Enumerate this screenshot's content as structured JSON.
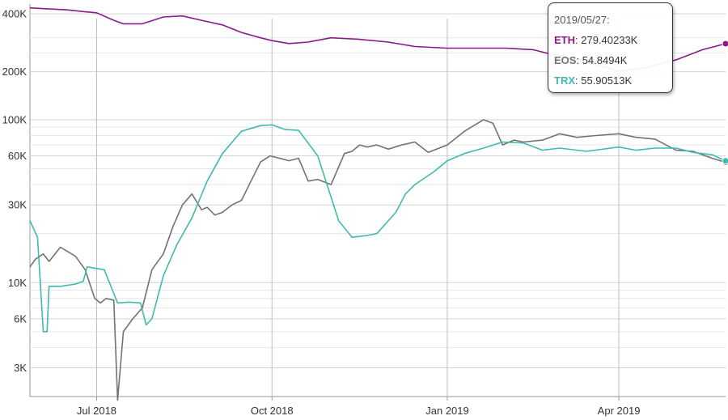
{
  "chart_data": {
    "type": "line",
    "title": "",
    "xlabel": "",
    "ylabel": "",
    "x_range": [
      "2018-05-27",
      "2019-05-27"
    ],
    "x_ticks": [
      {
        "date": "2018-07-01",
        "label": "Jul 2018"
      },
      {
        "date": "2018-10-01",
        "label": "Oct 2018"
      },
      {
        "date": "2019-01-01",
        "label": "Jan 2019"
      },
      {
        "date": "2019-04-01",
        "label": "Apr 2019"
      }
    ],
    "scale": "log",
    "grid": true,
    "legend": "none",
    "upper_axis": {
      "ylim": [
        150000,
        450000
      ],
      "ticks": [
        {
          "value": 400000,
          "label": "400K"
        },
        {
          "value": 200000,
          "label": "200K"
        }
      ],
      "minor_gridlines": [
        300000,
        250000
      ]
    },
    "lower_axis": {
      "ylim": [
        2000,
        120000
      ],
      "ticks": [
        {
          "value": 100000,
          "label": "100K"
        },
        {
          "value": 60000,
          "label": "60K"
        },
        {
          "value": 30000,
          "label": "30K"
        },
        {
          "value": 10000,
          "label": "10K"
        },
        {
          "value": 6000,
          "label": "6K"
        },
        {
          "value": 3000,
          "label": "3K"
        }
      ],
      "minor_gridlines": [
        90000,
        80000,
        70000,
        50000,
        40000,
        20000,
        9000,
        8000,
        7000,
        5000,
        4000
      ]
    },
    "series": [
      {
        "name": "ETH",
        "axis": "upper",
        "color": "#8b1a89",
        "x": [
          "2018-05-27",
          "2018-06-05",
          "2018-06-15",
          "2018-06-25",
          "2018-07-01",
          "2018-07-10",
          "2018-07-15",
          "2018-07-25",
          "2018-08-05",
          "2018-08-15",
          "2018-08-25",
          "2018-09-05",
          "2018-09-15",
          "2018-09-25",
          "2018-10-01",
          "2018-10-10",
          "2018-10-20",
          "2018-11-01",
          "2018-11-15",
          "2018-12-01",
          "2018-12-15",
          "2019-01-01",
          "2019-01-15",
          "2019-02-01",
          "2019-02-15",
          "2019-03-01",
          "2019-03-15",
          "2019-04-01",
          "2019-04-15",
          "2019-05-01",
          "2019-05-15",
          "2019-05-27"
        ],
        "values": [
          430000,
          425000,
          420000,
          410000,
          405000,
          370000,
          355000,
          355000,
          385000,
          390000,
          370000,
          350000,
          320000,
          300000,
          290000,
          280000,
          285000,
          300000,
          295000,
          285000,
          270000,
          265000,
          265000,
          265000,
          260000,
          240000,
          225000,
          200000,
          210000,
          230000,
          260000,
          279402
        ]
      },
      {
        "name": "EOS",
        "axis": "lower",
        "color": "#727272",
        "x": [
          "2018-05-27",
          "2018-05-30",
          "2018-06-03",
          "2018-06-06",
          "2018-06-12",
          "2018-06-20",
          "2018-06-25",
          "2018-06-30",
          "2018-07-03",
          "2018-07-06",
          "2018-07-10",
          "2018-07-12",
          "2018-07-15",
          "2018-07-20",
          "2018-07-25",
          "2018-07-30",
          "2018-08-05",
          "2018-08-10",
          "2018-08-15",
          "2018-08-20",
          "2018-08-25",
          "2018-08-28",
          "2018-09-01",
          "2018-09-05",
          "2018-09-10",
          "2018-09-15",
          "2018-09-20",
          "2018-09-25",
          "2018-09-30",
          "2018-10-05",
          "2018-10-10",
          "2018-10-15",
          "2018-10-20",
          "2018-10-25",
          "2018-11-01",
          "2018-11-08",
          "2018-11-12",
          "2018-11-16",
          "2018-11-20",
          "2018-11-25",
          "2018-12-01",
          "2018-12-08",
          "2018-12-15",
          "2018-12-22",
          "2019-01-01",
          "2019-01-10",
          "2019-01-20",
          "2019-01-25",
          "2019-01-30",
          "2019-02-05",
          "2019-02-10",
          "2019-02-20",
          "2019-03-01",
          "2019-03-10",
          "2019-03-20",
          "2019-04-01",
          "2019-04-10",
          "2019-04-20",
          "2019-05-01",
          "2019-05-10",
          "2019-05-20",
          "2019-05-27"
        ],
        "values": [
          12500,
          14000,
          15000,
          13500,
          16500,
          14500,
          12000,
          8000,
          7500,
          8000,
          7800,
          1900,
          5000,
          6000,
          7000,
          12000,
          15000,
          22000,
          30000,
          35000,
          28000,
          29000,
          26000,
          27000,
          30000,
          32000,
          42000,
          55000,
          60000,
          58000,
          56000,
          58000,
          42000,
          43000,
          40000,
          62000,
          64000,
          70000,
          68000,
          70000,
          66000,
          70000,
          73000,
          63000,
          70000,
          85000,
          100000,
          95000,
          70000,
          75000,
          73000,
          75000,
          82000,
          78000,
          80000,
          82000,
          78000,
          76000,
          65000,
          64000,
          58000,
          54849
        ]
      },
      {
        "name": "TRX",
        "axis": "lower",
        "color": "#3fbab0",
        "x": [
          "2018-05-27",
          "2018-05-31",
          "2018-06-03",
          "2018-06-05",
          "2018-06-06",
          "2018-06-12",
          "2018-06-20",
          "2018-06-24",
          "2018-06-26",
          "2018-07-05",
          "2018-07-12",
          "2018-07-18",
          "2018-07-24",
          "2018-07-27",
          "2018-07-30",
          "2018-08-05",
          "2018-08-12",
          "2018-08-20",
          "2018-08-28",
          "2018-09-05",
          "2018-09-15",
          "2018-09-25",
          "2018-10-01",
          "2018-10-08",
          "2018-10-15",
          "2018-10-25",
          "2018-11-05",
          "2018-11-12",
          "2018-11-20",
          "2018-11-25",
          "2018-12-05",
          "2018-12-10",
          "2018-12-15",
          "2018-12-25",
          "2019-01-01",
          "2019-01-10",
          "2019-01-20",
          "2019-01-30",
          "2019-02-10",
          "2019-02-20",
          "2019-03-01",
          "2019-03-15",
          "2019-04-01",
          "2019-04-10",
          "2019-04-20",
          "2019-05-01",
          "2019-05-10",
          "2019-05-20",
          "2019-05-27"
        ],
        "values": [
          24000,
          19000,
          5000,
          5000,
          9500,
          9500,
          9800,
          10200,
          12500,
          12000,
          7500,
          7600,
          7500,
          5500,
          6000,
          11000,
          17000,
          25000,
          42000,
          62000,
          85000,
          92000,
          93000,
          87000,
          86000,
          60000,
          24000,
          19000,
          19500,
          20000,
          27000,
          35000,
          40000,
          48000,
          56000,
          62000,
          67000,
          73000,
          72000,
          65000,
          67000,
          64000,
          68000,
          65000,
          67000,
          67000,
          63000,
          61000,
          55905
        ]
      }
    ]
  },
  "tooltip": {
    "date": "2019/05/27:",
    "rows": [
      {
        "name": "ETH",
        "value": "279.40233K",
        "color": "#8b1a89"
      },
      {
        "name": "EOS",
        "value": "54.8494K",
        "color": "#727272"
      },
      {
        "name": "TRX",
        "value": "55.90513K",
        "color": "#3fbab0"
      }
    ]
  }
}
